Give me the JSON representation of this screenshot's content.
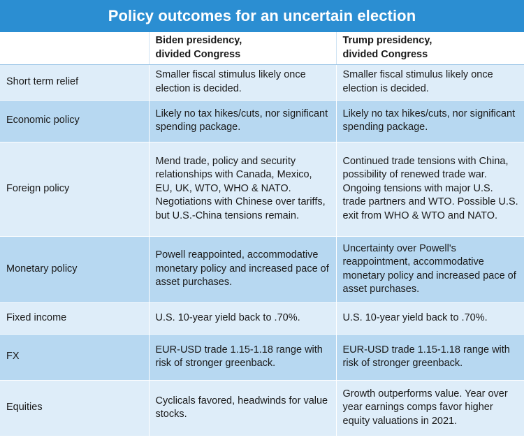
{
  "title": "Policy outcomes for an uncertain election",
  "columns": [
    "",
    "Biden presidency,\ndivided Congress",
    "Trump presidency,\ndivided Congress"
  ],
  "colors": {
    "title_bg": "#2b8ed2",
    "row_light": "#deedf9",
    "row_dark": "#b7d8f1"
  },
  "rows": [
    {
      "label": "Short term relief",
      "biden": "Smaller fiscal stimulus likely once election is decided.",
      "trump": "Smaller fiscal stimulus likely once election is decided."
    },
    {
      "label": "Economic policy",
      "biden": "Likely no tax hikes/cuts, nor significant spending package.",
      "trump": "Likely no tax hikes/cuts, nor significant spending package."
    },
    {
      "label": "Foreign policy",
      "biden": "Mend trade, policy and security relationships with Canada, Mexico, EU, UK, WTO, WHO & NATO. Negotiations with Chinese over tariffs, but U.S.-China tensions remain.",
      "trump": "Continued trade tensions with China, possibility of renewed trade war. Ongoing tensions with major U.S. trade partners and WTO. Possible U.S. exit from WHO & WTO and NATO."
    },
    {
      "label": "Monetary policy",
      "biden": "Powell reappointed, accommodative monetary policy and increased pace of asset purchases.",
      "trump": "Uncertainty over Powell's reappointment, accommodative monetary policy and increased pace of asset purchases."
    },
    {
      "label": "Fixed income",
      "biden": "U.S. 10-year yield back to .70%.",
      "trump": "U.S. 10-year yield back to .70%."
    },
    {
      "label": "FX",
      "biden": "EUR-USD trade 1.15-1.18 range with risk of stronger greenback.",
      "trump": "EUR-USD trade 1.15-1.18 range with risk of stronger greenback."
    },
    {
      "label": "Equities",
      "biden": "Cyclicals favored, headwinds for value stocks.",
      "trump": "Growth outperforms value. Year over year earnings comps favor higher equity valuations in 2021."
    }
  ]
}
